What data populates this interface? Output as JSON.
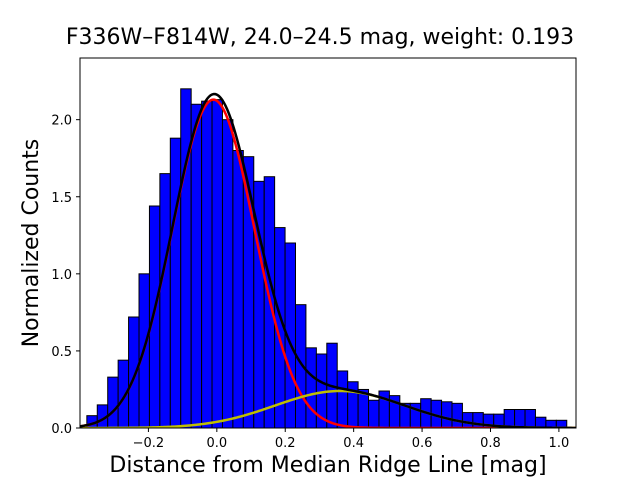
{
  "chart_data": {
    "type": "bar",
    "title": "F336W–F814W, 24.0–24.5 mag, weight: 0.193",
    "xlabel": "Distance from Median Ridge Line [mag]",
    "ylabel": "Normalized Counts",
    "xlim": [
      -0.4,
      1.05
    ],
    "ylim": [
      0,
      2.4
    ],
    "grid": false,
    "x_ticks": [
      -0.2,
      0.0,
      0.2,
      0.4,
      0.6,
      0.8,
      1.0
    ],
    "x_tick_labels": [
      "−0.2",
      "0.0",
      "0.2",
      "0.4",
      "0.6",
      "0.8",
      "1.0"
    ],
    "y_ticks": [
      0.0,
      0.5,
      1.0,
      1.5,
      2.0
    ],
    "y_tick_labels": [
      "0.0",
      "0.5",
      "1.0",
      "1.5",
      "2.0"
    ],
    "bin_start": -0.38,
    "bin_width": 0.0305,
    "values": [
      0.08,
      0.15,
      0.33,
      0.44,
      0.72,
      1.0,
      1.44,
      1.65,
      1.88,
      2.2,
      2.1,
      2.12,
      2.13,
      2.0,
      1.8,
      1.76,
      1.6,
      1.63,
      1.3,
      1.2,
      0.8,
      0.52,
      0.48,
      0.55,
      0.37,
      0.3,
      0.25,
      0.18,
      0.24,
      0.21,
      0.16,
      0.16,
      0.19,
      0.18,
      0.17,
      0.16,
      0.1,
      0.1,
      0.09,
      0.09,
      0.12,
      0.12,
      0.12,
      0.07,
      0.05,
      0.05
    ],
    "bar_color": "#0000ff",
    "bar_edge_color": "#000000",
    "series": [
      {
        "type": "gaussian",
        "color": "#ff0000",
        "amplitude": 2.13,
        "mean": -0.01,
        "sigma": 0.12
      },
      {
        "type": "gaussian",
        "color": "#bfbf00",
        "amplitude": 0.24,
        "mean": 0.36,
        "sigma": 0.19
      },
      {
        "type": "sum",
        "color": "#000000"
      }
    ]
  }
}
